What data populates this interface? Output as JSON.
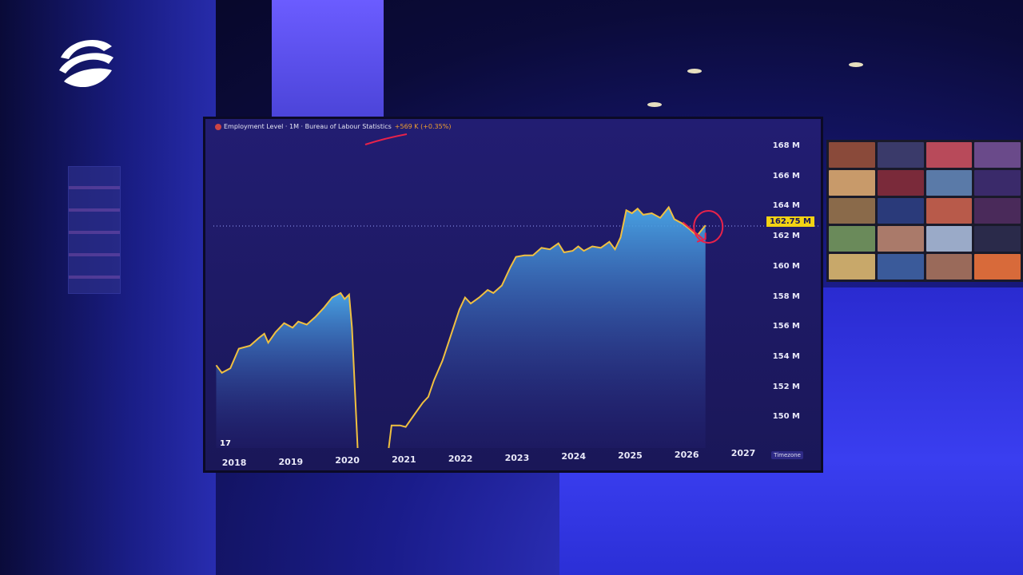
{
  "chart_data": {
    "type": "area",
    "title": "Employment Level · 1M · Bureau of Labour Statistics",
    "change": "+569 K (+0.35%)",
    "price_label": "162.75 M",
    "y_ticks": [
      "168 M",
      "166 M",
      "164 M",
      "162 M",
      "160 M",
      "158 M",
      "156 M",
      "154 M",
      "152 M",
      "150 M"
    ],
    "y_values": [
      168,
      166,
      164,
      162,
      160,
      158,
      156,
      154,
      152,
      150
    ],
    "x_ticks": [
      "2018",
      "2019",
      "2020",
      "2021",
      "2022",
      "2023",
      "2024",
      "2025",
      "2026",
      "2027"
    ],
    "x_positions_years": [
      2018,
      2019,
      2020,
      2021,
      2022,
      2023,
      2024,
      2025,
      2026,
      2027
    ],
    "ylim": [
      148,
      168.8
    ],
    "xlim": [
      2017.65,
      2027.4
    ],
    "series": [
      {
        "line_color": "#f0c040",
        "points": [
          [
            2017.7,
            153.5
          ],
          [
            2017.8,
            153.0
          ],
          [
            2017.95,
            153.3
          ],
          [
            2018.1,
            154.6
          ],
          [
            2018.3,
            154.8
          ],
          [
            2018.45,
            155.3
          ],
          [
            2018.55,
            155.6
          ],
          [
            2018.62,
            155.0
          ],
          [
            2018.75,
            155.7
          ],
          [
            2018.9,
            156.3
          ],
          [
            2019.05,
            156.0
          ],
          [
            2019.15,
            156.4
          ],
          [
            2019.3,
            156.2
          ],
          [
            2019.45,
            156.7
          ],
          [
            2019.6,
            157.3
          ],
          [
            2019.75,
            158.0
          ],
          [
            2019.9,
            158.3
          ],
          [
            2019.97,
            157.9
          ],
          [
            2020.05,
            158.2
          ],
          [
            2020.1,
            156.0
          ],
          [
            2020.2,
            148.0
          ],
          [
            2020.75,
            148.0
          ],
          [
            2020.8,
            149.5
          ],
          [
            2020.95,
            149.5
          ],
          [
            2021.05,
            149.4
          ],
          [
            2021.2,
            150.2
          ],
          [
            2021.35,
            151.0
          ],
          [
            2021.45,
            151.4
          ],
          [
            2021.55,
            152.5
          ],
          [
            2021.7,
            153.8
          ],
          [
            2021.85,
            155.5
          ],
          [
            2022.0,
            157.2
          ],
          [
            2022.1,
            158.0
          ],
          [
            2022.2,
            157.6
          ],
          [
            2022.35,
            158.0
          ],
          [
            2022.5,
            158.5
          ],
          [
            2022.6,
            158.3
          ],
          [
            2022.75,
            158.8
          ],
          [
            2022.9,
            160.0
          ],
          [
            2023.0,
            160.7
          ],
          [
            2023.15,
            160.8
          ],
          [
            2023.3,
            160.8
          ],
          [
            2023.45,
            161.3
          ],
          [
            2023.6,
            161.2
          ],
          [
            2023.75,
            161.6
          ],
          [
            2023.85,
            161.0
          ],
          [
            2024.0,
            161.1
          ],
          [
            2024.1,
            161.4
          ],
          [
            2024.2,
            161.1
          ],
          [
            2024.35,
            161.4
          ],
          [
            2024.5,
            161.3
          ],
          [
            2024.65,
            161.7
          ],
          [
            2024.75,
            161.2
          ],
          [
            2024.85,
            162.0
          ],
          [
            2024.95,
            163.8
          ],
          [
            2025.05,
            163.6
          ],
          [
            2025.15,
            163.9
          ],
          [
            2025.25,
            163.5
          ],
          [
            2025.4,
            163.6
          ],
          [
            2025.55,
            163.3
          ],
          [
            2025.7,
            164.0
          ],
          [
            2025.8,
            163.2
          ],
          [
            2025.95,
            162.9
          ],
          [
            2026.05,
            162.6
          ],
          [
            2026.2,
            162.1
          ],
          [
            2026.35,
            162.8
          ]
        ]
      }
    ],
    "grid": false,
    "watermark": "17",
    "timezone_label": "Timezone"
  },
  "scene": {
    "highlight_color": "#e8224a",
    "accent_color": "#f3d313"
  }
}
